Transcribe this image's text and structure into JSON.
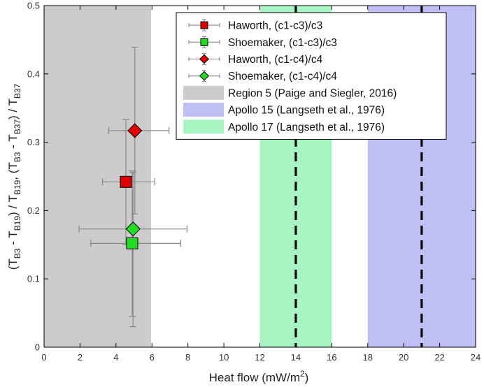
{
  "chart_data": {
    "type": "scatter",
    "xlabel": {
      "main": "Heat flow (mW/m",
      "sup": "2",
      "close": ")"
    },
    "ylabel": {
      "open": "(T",
      "s1": "B3",
      "minus1": " - T",
      "s2": "B19",
      "sep": ") / T",
      "s3": "B19",
      "comma": ", (T",
      "s4": "B3",
      "minus2": " - T",
      "s5": "B37",
      "sep2": ") / T",
      "s6": "B37"
    },
    "xlim": [
      0,
      24
    ],
    "ylim": [
      0,
      0.5
    ],
    "xticks": [
      0,
      2,
      4,
      6,
      8,
      10,
      12,
      14,
      16,
      18,
      20,
      22,
      24
    ],
    "yticks": [
      0,
      0.1,
      0.2,
      0.3,
      0.4,
      0.5
    ],
    "xtick_labels": [
      "0",
      "2",
      "4",
      "6",
      "8",
      "10",
      "12",
      "14",
      "16",
      "18",
      "20",
      "22",
      "24"
    ],
    "ytick_labels": [
      "0",
      "0.1",
      "0.2",
      "0.3",
      "0.4",
      "0.5"
    ],
    "grid": false,
    "legend_position": "top-right",
    "regions": [
      {
        "name": "Region 5 (Paige and Siegler, 2016)",
        "x0": 0,
        "x1": 5.95,
        "color": "#cccccc"
      },
      {
        "name": "Apollo 15 (Langseth et al., 1976)",
        "x0": 18,
        "x1": 24,
        "color": "#bfbff5",
        "center": 21
      },
      {
        "name": "Apollo 17 (Langseth et al., 1976)",
        "x0": 12,
        "x1": 16,
        "color": "#a8f5c4",
        "center": 14
      }
    ],
    "series": [
      {
        "name": "Haworth, (c1-c3)/c3",
        "marker": "square",
        "color": "#e00000",
        "x": 4.55,
        "y": 0.242,
        "xerr": [
          3.25,
          6.15
        ],
        "yerr": [
          0.15,
          0.333
        ]
      },
      {
        "name": "Shoemaker, (c1-c3)/c3",
        "marker": "square",
        "color": "#22dd22",
        "x": 4.9,
        "y": 0.152,
        "xerr": [
          2.6,
          7.6
        ],
        "yerr": [
          0.045,
          0.258
        ]
      },
      {
        "name": "Haworth, (c1-c4)/c4",
        "marker": "diamond",
        "color": "#e00000",
        "x": 5.05,
        "y": 0.317,
        "xerr": [
          3.6,
          6.95
        ],
        "yerr": [
          0.195,
          0.439
        ]
      },
      {
        "name": "Shoemaker, (c1-c4)/c4",
        "marker": "diamond",
        "color": "#22dd22",
        "x": 4.95,
        "y": 0.173,
        "xerr": [
          1.95,
          7.95
        ],
        "yerr": [
          0.03,
          0.256
        ]
      }
    ],
    "legend_order": [
      {
        "kind": "series",
        "index": 0
      },
      {
        "kind": "series",
        "index": 1
      },
      {
        "kind": "series",
        "index": 2
      },
      {
        "kind": "series",
        "index": 3
      },
      {
        "kind": "region",
        "index": 0
      },
      {
        "kind": "region",
        "index": 1
      },
      {
        "kind": "region",
        "index": 2
      }
    ]
  }
}
